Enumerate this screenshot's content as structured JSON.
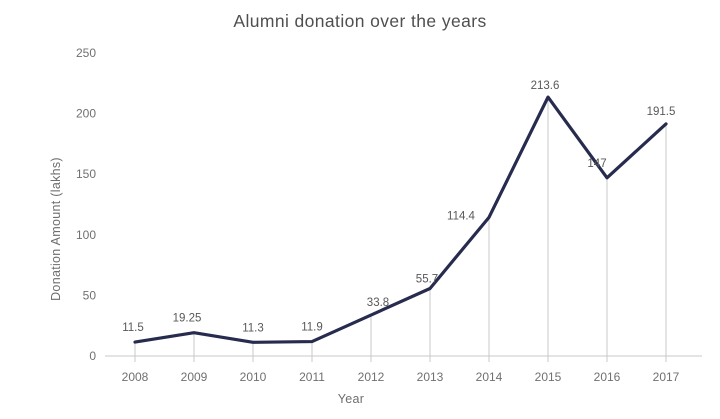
{
  "chart_data": {
    "type": "line",
    "title": "Alumni donation over the years",
    "xlabel": "Year",
    "ylabel": "Donation Amount (lakhs)",
    "categories": [
      "2008",
      "2009",
      "2010",
      "2011",
      "2012",
      "2013",
      "2014",
      "2015",
      "2016",
      "2017"
    ],
    "series": [
      {
        "name": "Donation Amount",
        "values": [
          11.5,
          19.25,
          11.3,
          11.9,
          33.8,
          55.7,
          114.4,
          213.6,
          147,
          191.5
        ],
        "labels": [
          "11.5",
          "19.25",
          "11.3",
          "11.9",
          "33.8",
          "55.7",
          "114.4",
          "213.6",
          "147",
          "191.5"
        ]
      }
    ],
    "y_ticks": [
      0,
      50,
      100,
      150,
      200,
      250
    ],
    "ylim": [
      0,
      250
    ],
    "grid": "off",
    "legend": "none",
    "drop_lines": "each point to x-axis",
    "colors": {
      "line": "#272c4e",
      "drop_line": "#c9c9c9",
      "axis_line": "#c9c9c9",
      "tick_label": "#707070",
      "data_label": "#585858",
      "title": "#4f4f4f",
      "background": "#ffffff"
    }
  }
}
